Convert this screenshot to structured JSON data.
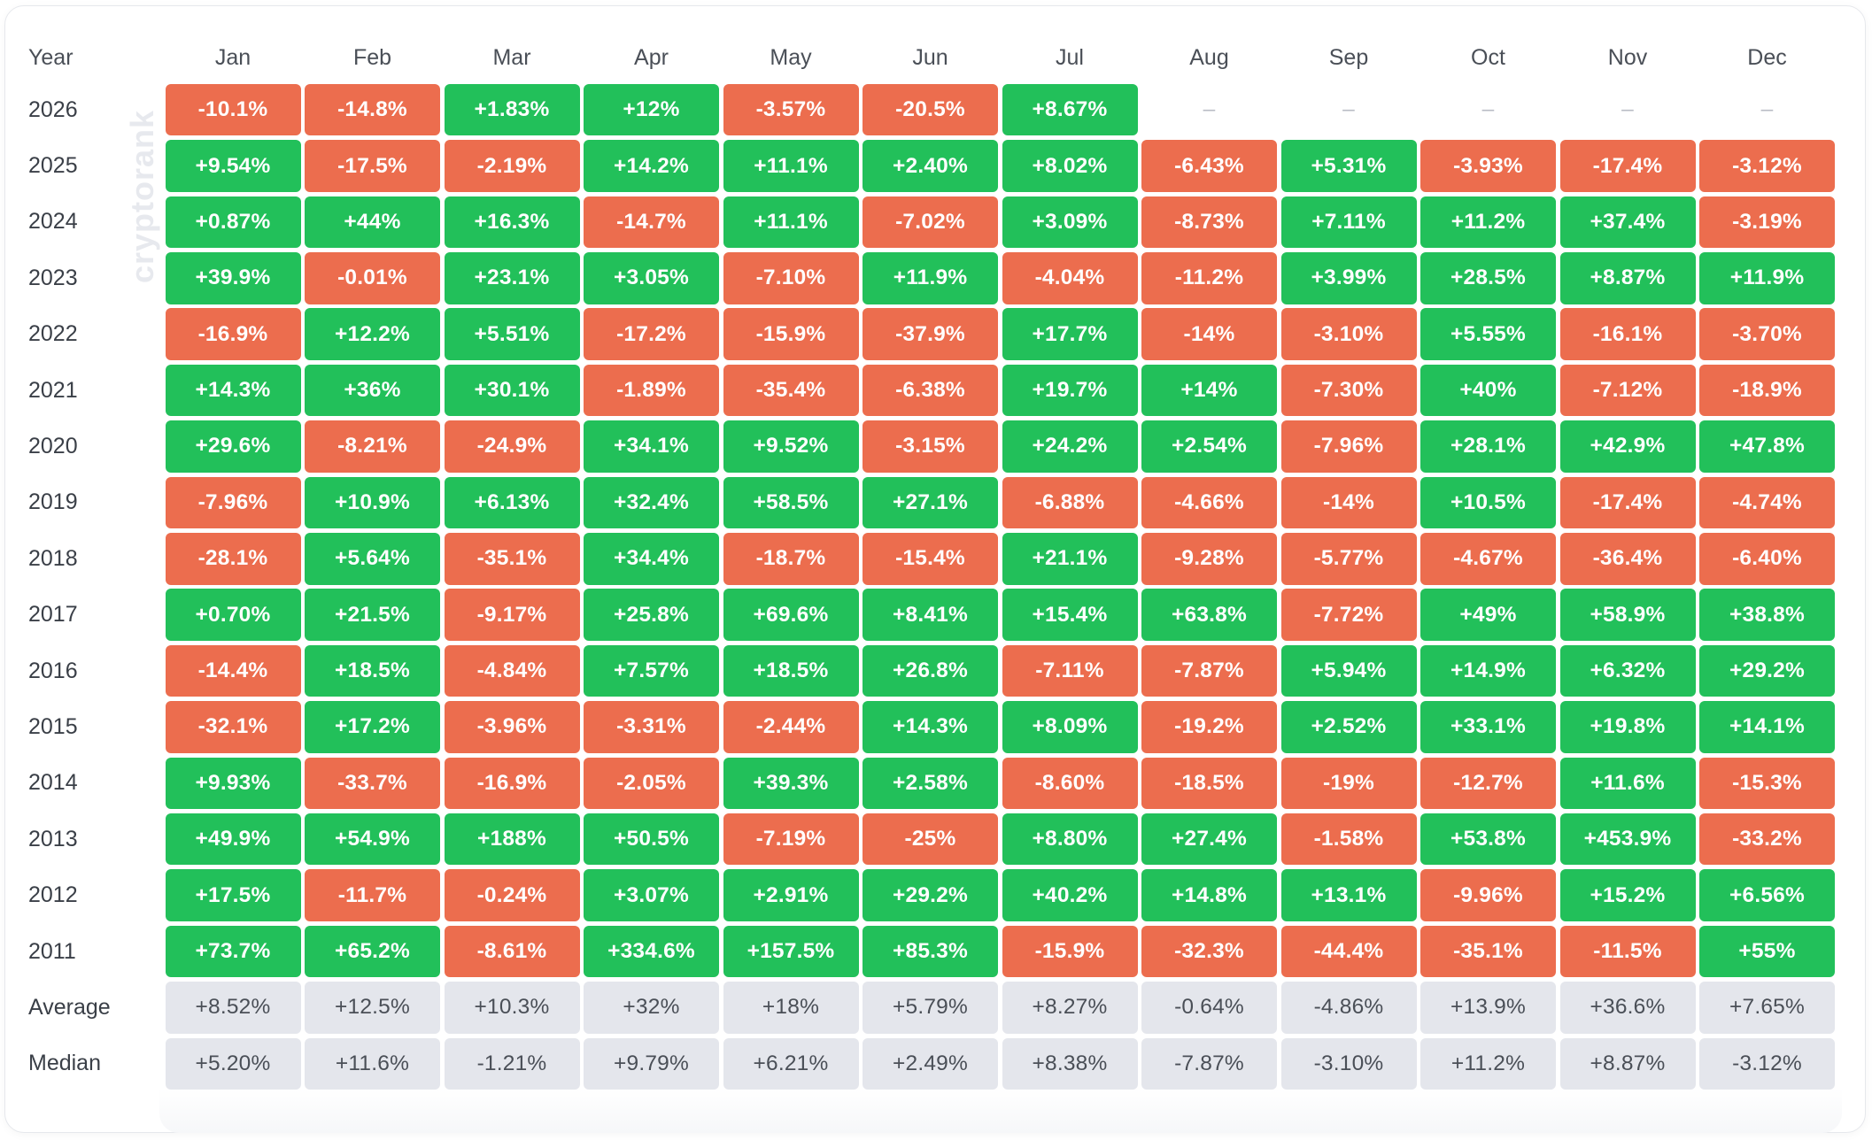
{
  "chart_data": {
    "type": "heatmap",
    "watermark": "cryptorank",
    "header_label": "Year",
    "columns": [
      "Jan",
      "Feb",
      "Mar",
      "Apr",
      "May",
      "Jun",
      "Jul",
      "Aug",
      "Sep",
      "Oct",
      "Nov",
      "Dec"
    ],
    "colors": {
      "positive": "#22c05a",
      "negative": "#ec6d4e",
      "stat": "#e4e6ec",
      "empty_dash": "#b8bcc4"
    },
    "rows": [
      {
        "label": "2026",
        "values": [
          "-10.1%",
          "-14.8%",
          "+1.83%",
          "+12%",
          "-3.57%",
          "-20.5%",
          "+8.67%",
          "–",
          "–",
          "–",
          "–",
          "–"
        ]
      },
      {
        "label": "2025",
        "values": [
          "+9.54%",
          "-17.5%",
          "-2.19%",
          "+14.2%",
          "+11.1%",
          "+2.40%",
          "+8.02%",
          "-6.43%",
          "+5.31%",
          "-3.93%",
          "-17.4%",
          "-3.12%"
        ]
      },
      {
        "label": "2024",
        "values": [
          "+0.87%",
          "+44%",
          "+16.3%",
          "-14.7%",
          "+11.1%",
          "-7.02%",
          "+3.09%",
          "-8.73%",
          "+7.11%",
          "+11.2%",
          "+37.4%",
          "-3.19%"
        ]
      },
      {
        "label": "2023",
        "values": [
          "+39.9%",
          "-0.01%",
          "+23.1%",
          "+3.05%",
          "-7.10%",
          "+11.9%",
          "-4.04%",
          "-11.2%",
          "+3.99%",
          "+28.5%",
          "+8.87%",
          "+11.9%"
        ]
      },
      {
        "label": "2022",
        "values": [
          "-16.9%",
          "+12.2%",
          "+5.51%",
          "-17.2%",
          "-15.9%",
          "-37.9%",
          "+17.7%",
          "-14%",
          "-3.10%",
          "+5.55%",
          "-16.1%",
          "-3.70%"
        ]
      },
      {
        "label": "2021",
        "values": [
          "+14.3%",
          "+36%",
          "+30.1%",
          "-1.89%",
          "-35.4%",
          "-6.38%",
          "+19.7%",
          "+14%",
          "-7.30%",
          "+40%",
          "-7.12%",
          "-18.9%"
        ]
      },
      {
        "label": "2020",
        "values": [
          "+29.6%",
          "-8.21%",
          "-24.9%",
          "+34.1%",
          "+9.52%",
          "-3.15%",
          "+24.2%",
          "+2.54%",
          "-7.96%",
          "+28.1%",
          "+42.9%",
          "+47.8%"
        ]
      },
      {
        "label": "2019",
        "values": [
          "-7.96%",
          "+10.9%",
          "+6.13%",
          "+32.4%",
          "+58.5%",
          "+27.1%",
          "-6.88%",
          "-4.66%",
          "-14%",
          "+10.5%",
          "-17.4%",
          "-4.74%"
        ]
      },
      {
        "label": "2018",
        "values": [
          "-28.1%",
          "+5.64%",
          "-35.1%",
          "+34.4%",
          "-18.7%",
          "-15.4%",
          "+21.1%",
          "-9.28%",
          "-5.77%",
          "-4.67%",
          "-36.4%",
          "-6.40%"
        ]
      },
      {
        "label": "2017",
        "values": [
          "+0.70%",
          "+21.5%",
          "-9.17%",
          "+25.8%",
          "+69.6%",
          "+8.41%",
          "+15.4%",
          "+63.8%",
          "-7.72%",
          "+49%",
          "+58.9%",
          "+38.8%"
        ]
      },
      {
        "label": "2016",
        "values": [
          "-14.4%",
          "+18.5%",
          "-4.84%",
          "+7.57%",
          "+18.5%",
          "+26.8%",
          "-7.11%",
          "-7.87%",
          "+5.94%",
          "+14.9%",
          "+6.32%",
          "+29.2%"
        ]
      },
      {
        "label": "2015",
        "values": [
          "-32.1%",
          "+17.2%",
          "-3.96%",
          "-3.31%",
          "-2.44%",
          "+14.3%",
          "+8.09%",
          "-19.2%",
          "+2.52%",
          "+33.1%",
          "+19.8%",
          "+14.1%"
        ]
      },
      {
        "label": "2014",
        "values": [
          "+9.93%",
          "-33.7%",
          "-16.9%",
          "-2.05%",
          "+39.3%",
          "+2.58%",
          "-8.60%",
          "-18.5%",
          "-19%",
          "-12.7%",
          "+11.6%",
          "-15.3%"
        ]
      },
      {
        "label": "2013",
        "values": [
          "+49.9%",
          "+54.9%",
          "+188%",
          "+50.5%",
          "-7.19%",
          "-25%",
          "+8.80%",
          "+27.4%",
          "-1.58%",
          "+53.8%",
          "+453.9%",
          "-33.2%"
        ]
      },
      {
        "label": "2012",
        "values": [
          "+17.5%",
          "-11.7%",
          "-0.24%",
          "+3.07%",
          "+2.91%",
          "+29.2%",
          "+40.2%",
          "+14.8%",
          "+13.1%",
          "-9.96%",
          "+15.2%",
          "+6.56%"
        ]
      },
      {
        "label": "2011",
        "values": [
          "+73.7%",
          "+65.2%",
          "-8.61%",
          "+334.6%",
          "+157.5%",
          "+85.3%",
          "-15.9%",
          "-32.3%",
          "-44.4%",
          "-35.1%",
          "-11.5%",
          "+55%"
        ]
      }
    ],
    "summary_rows": [
      {
        "label": "Average",
        "values": [
          "+8.52%",
          "+12.5%",
          "+10.3%",
          "+32%",
          "+18%",
          "+5.79%",
          "+8.27%",
          "-0.64%",
          "-4.86%",
          "+13.9%",
          "+36.6%",
          "+7.65%"
        ]
      },
      {
        "label": "Median",
        "values": [
          "+5.20%",
          "+11.6%",
          "-1.21%",
          "+9.79%",
          "+6.21%",
          "+2.49%",
          "+8.38%",
          "-7.87%",
          "-3.10%",
          "+11.2%",
          "+8.87%",
          "-3.12%"
        ]
      }
    ]
  }
}
